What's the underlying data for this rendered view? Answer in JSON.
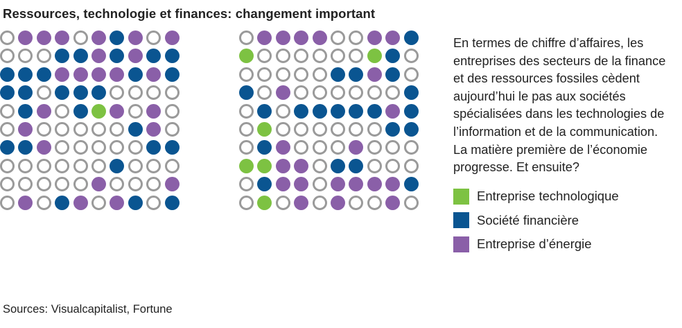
{
  "title": "Ressources, technologie et finances: changement important",
  "description": [
    "En termes de chiffre d’affaires, les",
    "entreprises des secteurs de la finance",
    "et des ressources fossiles cèdent",
    "aujourd’hui le pas aux sociétés",
    "spécialisées dans les technologies de",
    "l’information et de la communication.",
    "La matière première de l’économie",
    "progresse. Et ensuite?"
  ],
  "legend": [
    {
      "label": "Entreprise technologique",
      "key": "T",
      "color": "#7dc242"
    },
    {
      "label": "Société financière",
      "key": "F",
      "color": "#0a5591"
    },
    {
      "label": "Entreprise d’énergie",
      "key": "E",
      "color": "#8a5fa8"
    }
  ],
  "source": "Sources: Visualcapitalist, Fortune",
  "colors": {
    "T": "#7dc242",
    "F": "#0a5591",
    "E": "#8a5fa8",
    "O": "#9a9a9a"
  },
  "chart_data": [
    {
      "type": "table",
      "grid_rows": [
        "OEEEOEFEOE",
        "OOOFFEFEFF",
        "FFFEEEEFEF",
        "FFOFFFOOOO",
        "OFEOFTEOEO",
        "OEOOOOOFEO",
        "FFEOOOOOFF",
        "OOOOOOFOOO",
        "OOOOOEOOOE",
        "OEOFEOEFOF"
      ]
    },
    {
      "type": "table",
      "grid_rows": [
        "OEEEEOOEEF",
        "TOOOOOOTFO",
        "OOOOOFFEFO",
        "FOEOOOOOOF",
        "OFOFFFFFEF",
        "OTOOOOOOFF",
        "OFEOOOEOOO",
        "TTEEOFFOOO",
        "OFEEOEEEEF",
        "OTOEOEOOEO"
      ]
    }
  ]
}
